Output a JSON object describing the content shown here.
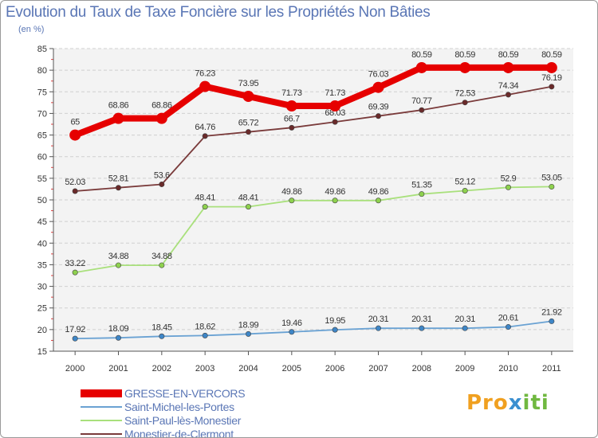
{
  "chart_data": {
    "type": "line",
    "title": "Evolution du Taux de Taxe Foncière sur les Propriétés Non Bâties",
    "subtitle": "(en %)",
    "xlabel": "",
    "ylabel": "",
    "ylim": [
      15,
      85
    ],
    "yticks": [
      15,
      20,
      25,
      30,
      35,
      40,
      45,
      50,
      55,
      60,
      65,
      70,
      75,
      80,
      85
    ],
    "categories": [
      "2000",
      "2001",
      "2002",
      "2003",
      "2004",
      "2005",
      "2006",
      "2007",
      "2008",
      "2009",
      "2010",
      "2011"
    ],
    "legend_position": "bottom-left",
    "grid": "horizontal-dashed",
    "series": [
      {
        "name": "GRESSE-EN-VERCORS",
        "color": "#e60000",
        "marker_color": "#e60000",
        "weight": "bold",
        "values": [
          65,
          68.86,
          68.86,
          76.23,
          73.95,
          71.73,
          71.73,
          76.03,
          80.59,
          80.59,
          80.59,
          80.59
        ],
        "labels": [
          "65",
          "68.86",
          "68.86",
          "76.23",
          "73.95",
          "71.73",
          "71.73",
          "76.03",
          "80.59",
          "80.59",
          "80.59",
          "80.59"
        ]
      },
      {
        "name": "Saint-Michel-les-Portes",
        "color": "#6aa2d3",
        "marker_color": "#3e86c7",
        "weight": "normal",
        "values": [
          17.92,
          18.09,
          18.45,
          18.62,
          18.99,
          19.46,
          19.95,
          20.31,
          20.31,
          20.31,
          20.61,
          21.92
        ],
        "labels": [
          "17.92",
          "18.09",
          "18.45",
          "18.62",
          "18.99",
          "19.46",
          "19.95",
          "20.31",
          "20.31",
          "20.31",
          "20.61",
          "21.92"
        ]
      },
      {
        "name": "Saint-Paul-lès-Monestier",
        "color": "#a9e07c",
        "marker_color": "#8ed14e",
        "weight": "normal",
        "values": [
          33.22,
          34.88,
          34.88,
          48.41,
          48.41,
          49.86,
          49.86,
          49.86,
          51.35,
          52.12,
          52.9,
          53.05
        ],
        "labels": [
          "33.22",
          "34.88",
          "34.88",
          "48.41",
          "48.41",
          "49.86",
          "49.86",
          "49.86",
          "51.35",
          "52.12",
          "52.9",
          "53.05"
        ]
      },
      {
        "name": "Monestier-de-Clermont",
        "color": "#7a3b3b",
        "marker_color": "#6a2a2a",
        "weight": "normal",
        "values": [
          52.03,
          52.81,
          53.6,
          64.76,
          65.72,
          66.7,
          68.03,
          69.39,
          70.77,
          72.53,
          74.34,
          76.19
        ],
        "labels": [
          "52.03",
          "52.81",
          "53.6",
          "64.76",
          "65.72",
          "66.7",
          "68.03",
          "69.39",
          "70.77",
          "72.53",
          "74.34",
          "76.19"
        ]
      }
    ]
  },
  "legend": {
    "items": [
      "GRESSE-EN-VERCORS",
      "Saint-Michel-les-Portes",
      "Saint-Paul-lès-Monestier",
      "Monestier-de-Clermont"
    ]
  },
  "logo": {
    "part1": "Pro",
    "part2": "x",
    "part3": "iti"
  }
}
